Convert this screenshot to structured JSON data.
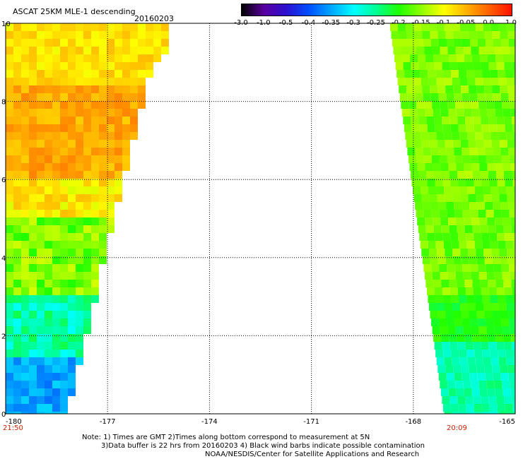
{
  "title": {
    "product": "ASCAT 25KM MLE-1 descending",
    "date": "20160203"
  },
  "colorbar": {
    "tick_labels": [
      "-3.0",
      "-1.0",
      "-0.5",
      "-0.4",
      "-0.35",
      "-0.3",
      "-0.25",
      "-0.2",
      "-0.15",
      "-0.1",
      "-0.05",
      "0.0",
      "1.0"
    ],
    "colors": [
      "#000000",
      "#5a00a0",
      "#2a10d0",
      "#0050ff",
      "#00a8ff",
      "#00ffff",
      "#00ff90",
      "#20ff00",
      "#90ff00",
      "#ffff00",
      "#ffb000",
      "#ff6000",
      "#ff1000"
    ]
  },
  "map": {
    "lon_range": [
      -180,
      -165
    ],
    "lat_range": [
      0,
      10
    ],
    "x_tick_labels": [
      "-180",
      "-177",
      "-174",
      "-171",
      "-168",
      "-165"
    ],
    "y_tick_labels": [
      "0",
      "2",
      "4",
      "6",
      "8",
      "10"
    ],
    "swaths": [
      {
        "name": "west-swath",
        "time": "21:50",
        "dominant_colors": [
          "#ffff00",
          "#ffb000",
          "#20ff00",
          "#00ffff",
          "#0050ff"
        ]
      },
      {
        "name": "east-swath",
        "time": "20:09",
        "dominant_colors": [
          "#20ff00",
          "#00ff90",
          "#00ffff"
        ]
      }
    ]
  },
  "notes": {
    "line1": "Note: 1) Times are GMT 2)Times along bottom correspond to measurement at 5N",
    "line2": "3)Data buffer is 22 hrs from 20160203 4) Black wind barbs indicate possible contamination",
    "line3": "NOAA/NESDIS/Center for Satellite Applications and Research"
  }
}
